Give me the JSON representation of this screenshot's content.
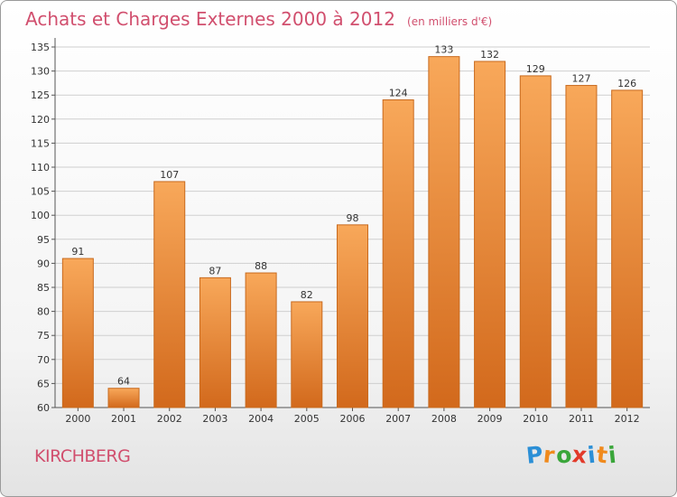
{
  "chart_data": {
    "type": "bar",
    "title": "Achats et Charges Externes 2000 à 2012",
    "subtitle": "(en milliers d'€)",
    "categories": [
      "2000",
      "2001",
      "2002",
      "2003",
      "2004",
      "2005",
      "2006",
      "2007",
      "2008",
      "2009",
      "2010",
      "2011",
      "2012"
    ],
    "values": [
      91,
      64,
      107,
      87,
      88,
      82,
      98,
      124,
      133,
      132,
      129,
      127,
      126
    ],
    "ylim": [
      60,
      135
    ],
    "yticks": [
      "60",
      "65",
      "70",
      "75",
      "80",
      "85",
      "90",
      "95",
      "100",
      "105",
      "110",
      "115",
      "120",
      "125",
      "130",
      "135"
    ],
    "grid": true,
    "xlabel": "",
    "ylabel": "",
    "colors": {
      "bar_top": "#f8a85a",
      "bar_bottom": "#d2691c",
      "bar_border": "#c86a1e",
      "grid": "#cfcfcf",
      "text": "#333333"
    }
  },
  "footer": {
    "town": "KIRCHBERG",
    "logo_letters": [
      "P",
      "r",
      "o",
      "x",
      "i",
      "t",
      "i"
    ],
    "logo_colors": [
      "#2b8fd6",
      "#f08a1c",
      "#3aa63a",
      "#e23a2a",
      "#2b8fd6",
      "#f08a1c",
      "#3aa63a"
    ]
  }
}
